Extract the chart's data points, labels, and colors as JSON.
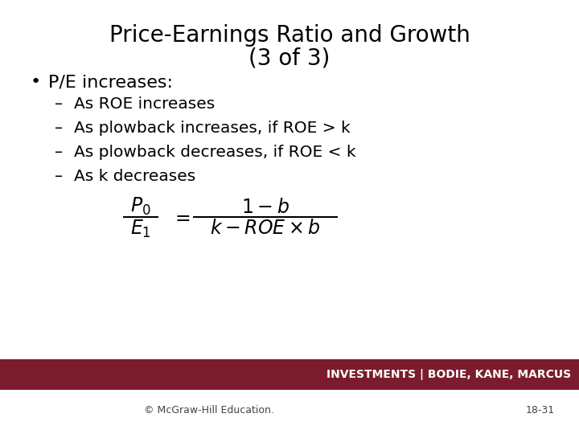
{
  "title_line1": "Price-Earnings Ratio and Growth",
  "title_line2": "(3 of 3)",
  "title_fontsize": 20,
  "title_color": "#000000",
  "background_color": "#ffffff",
  "bullet": "P/E increases:",
  "bullet_fontsize": 16,
  "sub_items": [
    "As ROE increases",
    "As plowback increases, if ROE > k",
    "As plowback decreases, if ROE < k",
    "As k decreases"
  ],
  "sub_fontsize": 14.5,
  "footer_bar_color": "#7b1c2e",
  "footer_text": "INVESTMENTS | BODIE, KANE, MARCUS",
  "footer_text_color": "#ffffff",
  "footer_fontsize": 10,
  "copyright_text": "© McGraw-Hill Education.",
  "page_text": "18-31",
  "copyright_fontsize": 9,
  "font_family": "DejaVu Sans"
}
